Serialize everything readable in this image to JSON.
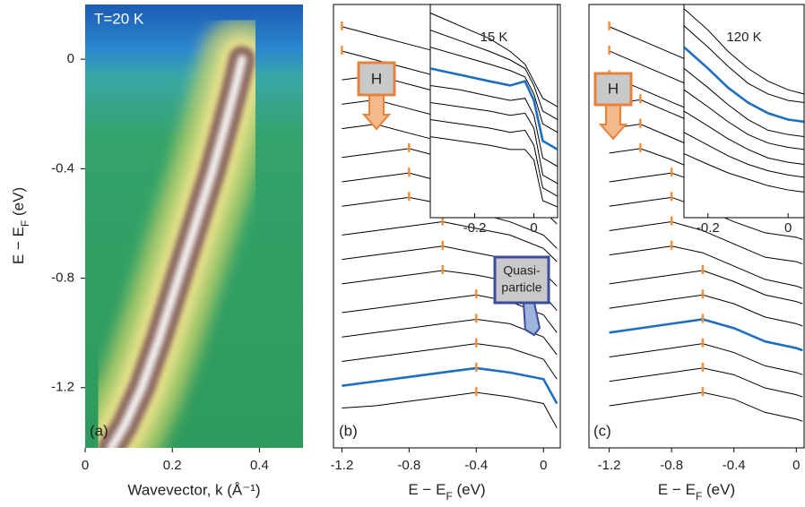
{
  "chart_data": [
    {
      "type": "band",
      "panel_label": "(a)",
      "annotation": "T=20 K",
      "x": [
        0.36,
        0.345,
        0.32,
        0.29,
        0.25,
        0.21,
        0.17,
        0.13,
        0.09,
        0.06
      ],
      "values": [
        0,
        -0.1,
        -0.25,
        -0.42,
        -0.62,
        -0.82,
        -1.02,
        -1.2,
        -1.34,
        -1.42
      ],
      "xlim": [
        0,
        0.5
      ],
      "ylim": [
        -1.42,
        0.2
      ],
      "xticks": [
        0,
        0.2,
        0.4
      ],
      "yticks": [
        0,
        -0.4,
        -0.8,
        -1.2
      ],
      "xlabel": "Wavevector, k (Å⁻¹)",
      "ylabel": {
        "main": "E − E",
        "sub": "F",
        "unit": " (eV)"
      }
    },
    {
      "type": "edc",
      "panel_label": "(b)",
      "xlim": [
        -1.25,
        0.1
      ],
      "ylim": [
        0,
        100
      ],
      "xticks": [
        -1.2,
        -0.8,
        -0.4,
        0
      ],
      "xlabel": {
        "main": "E − E",
        "sub": "F",
        "unit": " (eV)"
      },
      "hump_color": "#f0903a",
      "annotations": [
        "H",
        [
          "Quasi-",
          "particle"
        ]
      ],
      "x": [
        -1.2,
        -1.0,
        -0.8,
        -0.6,
        -0.4,
        -0.2,
        0,
        0.08
      ],
      "series": [
        {
          "color": "#000",
          "values": [
            95,
            93,
            91,
            89,
            87,
            85,
            83,
            81
          ]
        },
        {
          "color": "#000",
          "values": [
            89.5,
            87.5,
            85.5,
            83.5,
            81.5,
            79.5,
            77.5,
            75.5
          ]
        },
        {
          "color": "#000",
          "values": [
            83,
            84,
            82,
            80,
            78,
            76,
            74,
            72
          ]
        },
        {
          "color": "#000",
          "values": [
            77.5,
            78.5,
            76.5,
            74.5,
            72.5,
            70.5,
            68.5,
            66
          ]
        },
        {
          "color": "#000",
          "values": [
            72,
            73,
            71,
            69,
            67,
            65,
            63,
            60
          ]
        },
        {
          "color": "#000",
          "values": [
            65.5,
            66.5,
            67.5,
            65.5,
            63.5,
            61.5,
            59,
            56
          ]
        },
        {
          "color": "#000",
          "values": [
            60,
            61,
            62,
            60,
            58,
            56,
            53.5,
            50.5
          ]
        },
        {
          "color": "#000",
          "values": [
            54.5,
            55.5,
            56.5,
            55,
            53,
            51,
            48,
            45
          ]
        },
        {
          "color": "#000",
          "values": [
            48,
            49,
            50,
            51,
            49.5,
            48,
            45,
            42
          ]
        },
        {
          "color": "#000",
          "values": [
            42.5,
            43.5,
            44.5,
            45.5,
            44,
            42.5,
            39.5,
            36.5
          ]
        },
        {
          "color": "#000",
          "values": [
            37,
            38,
            39,
            40,
            39,
            37.5,
            34.5,
            31
          ]
        },
        {
          "color": "#000",
          "values": [
            30.5,
            31.5,
            32.5,
            33.5,
            34.5,
            33,
            30,
            26
          ]
        },
        {
          "color": "#000",
          "values": [
            25,
            26,
            27,
            28,
            29,
            28,
            25,
            21
          ]
        },
        {
          "color": "#000",
          "values": [
            19.5,
            20.5,
            21.5,
            22.5,
            23.5,
            22.5,
            20,
            15.5
          ]
        },
        {
          "color": "#1f6fbf",
          "values": [
            14,
            15,
            16,
            17,
            18,
            17,
            15.5,
            10
          ]
        },
        {
          "color": "#000",
          "values": [
            9,
            9.5,
            10.5,
            11.5,
            12.5,
            11.5,
            10,
            4.5
          ]
        }
      ],
      "inset": {
        "label": "15 K",
        "xlim": [
          -0.35,
          0.08
        ],
        "ylim": [
          0,
          100
        ],
        "xticks": [
          -0.2,
          0
        ],
        "x": [
          -0.35,
          -0.25,
          -0.15,
          -0.08,
          -0.03,
          0,
          0.03,
          0.08
        ],
        "series": [
          {
            "color": "#000",
            "values": [
              96,
              90,
              84,
              78,
              72,
              64,
              56,
              52
            ]
          },
          {
            "color": "#000",
            "values": [
              88,
              83,
              78,
              74,
              70,
              62,
              50,
              46
            ]
          },
          {
            "color": "#000",
            "values": [
              80,
              76,
              72,
              69,
              66,
              58,
              44,
              40
            ]
          },
          {
            "color": "#1f6fbf",
            "values": [
              70,
              67,
              64,
              62,
              64,
              55,
              36,
              32
            ]
          },
          {
            "color": "#000",
            "values": [
              62,
              60,
              57,
              55,
              56,
              48,
              28,
              24
            ]
          },
          {
            "color": "#000",
            "values": [
              54,
              52,
              50,
              48,
              49,
              42,
              20,
              16
            ]
          },
          {
            "color": "#000",
            "values": [
              46,
              44,
              42,
              40,
              41,
              34,
              14,
              10
            ]
          },
          {
            "color": "#000",
            "values": [
              38,
              36,
              34,
              32,
              32,
              27,
              8,
              5
            ]
          }
        ]
      }
    },
    {
      "type": "edc",
      "panel_label": "(c)",
      "xlim": [
        -1.33,
        0.05
      ],
      "ylim": [
        0,
        100
      ],
      "xticks": [
        -1.2,
        -0.8,
        -0.4,
        0
      ],
      "xlabel": {
        "main": "E − E",
        "sub": "F",
        "unit": " (eV)"
      },
      "hump_color": "#f0903a",
      "annotations": [
        "H"
      ],
      "x": [
        -1.2,
        -1.0,
        -0.8,
        -0.6,
        -0.4,
        -0.2,
        0,
        0.04
      ],
      "series": [
        {
          "color": "#000",
          "values": [
            95,
            92,
            89,
            86,
            84,
            82,
            81,
            80.5
          ]
        },
        {
          "color": "#000",
          "values": [
            89.5,
            86.5,
            83.5,
            80.5,
            78.5,
            76.5,
            75.5,
            75
          ]
        },
        {
          "color": "#000",
          "values": [
            84,
            81,
            78,
            75,
            73,
            71,
            70,
            69.5
          ]
        },
        {
          "color": "#000",
          "values": [
            77.5,
            78.5,
            75.5,
            72.5,
            70,
            68,
            67,
            66.5
          ]
        },
        {
          "color": "#000",
          "values": [
            72,
            73,
            70,
            67,
            64.5,
            62.5,
            61.5,
            61
          ]
        },
        {
          "color": "#000",
          "values": [
            66.5,
            67.5,
            65,
            62,
            59.5,
            57.5,
            56.5,
            56
          ]
        },
        {
          "color": "#000",
          "values": [
            60,
            61,
            62,
            59.5,
            56.5,
            54,
            53,
            52.5
          ]
        },
        {
          "color": "#000",
          "values": [
            54.5,
            55.5,
            56.5,
            54,
            51,
            48.5,
            47.5,
            47
          ]
        },
        {
          "color": "#000",
          "values": [
            49,
            50,
            51,
            49,
            46,
            43,
            42,
            41.5
          ]
        },
        {
          "color": "#000",
          "values": [
            43.5,
            44.5,
            45.5,
            44,
            41,
            38,
            36.5,
            36
          ]
        },
        {
          "color": "#000",
          "values": [
            37,
            38,
            39,
            40,
            37.5,
            34.5,
            33,
            32.5
          ]
        },
        {
          "color": "#000",
          "values": [
            31.5,
            32.5,
            33.5,
            34.5,
            32.5,
            29.5,
            28,
            27.5
          ]
        },
        {
          "color": "#1f6fbf",
          "values": [
            26,
            27,
            28,
            29,
            27,
            24,
            22.5,
            22
          ]
        },
        {
          "color": "#000",
          "values": [
            20.5,
            21.5,
            22.5,
            23.5,
            21.5,
            18.5,
            17,
            16.5
          ]
        },
        {
          "color": "#000",
          "values": [
            15,
            16,
            17,
            18,
            16.5,
            13.5,
            12,
            11.5
          ]
        },
        {
          "color": "#000",
          "values": [
            9.5,
            10.5,
            11.5,
            12.5,
            11,
            8,
            6.5,
            6
          ]
        }
      ],
      "inset": {
        "label": "120 K",
        "xlim": [
          -0.26,
          0.04
        ],
        "ylim": [
          0,
          100
        ],
        "xticks": [
          -0.2,
          0
        ],
        "x": [
          -0.26,
          -0.2,
          -0.15,
          -0.1,
          -0.05,
          0,
          0.04
        ],
        "series": [
          {
            "color": "#000",
            "values": [
              98,
              88,
              78,
              70,
              64,
              60,
              58
            ]
          },
          {
            "color": "#000",
            "values": [
              90,
              80,
              71,
              63,
              58,
              55,
              54
            ]
          },
          {
            "color": "#1f6fbf",
            "values": [
              80,
              70,
              61,
              54,
              49,
              46,
              45
            ]
          },
          {
            "color": "#000",
            "values": [
              70,
              61,
              53,
              46,
              41,
              39,
              38
            ]
          },
          {
            "color": "#000",
            "values": [
              60,
              52,
              45,
              39,
              35,
              33,
              32
            ]
          },
          {
            "color": "#000",
            "values": [
              50,
              43,
              37,
              32,
              28,
              26,
              25
            ]
          },
          {
            "color": "#000",
            "values": [
              40,
              34,
              29,
              25,
              22,
              20,
              19
            ]
          },
          {
            "color": "#000",
            "values": [
              30,
              25,
              21,
              18,
              15,
              13,
              12
            ]
          }
        ]
      }
    }
  ]
}
